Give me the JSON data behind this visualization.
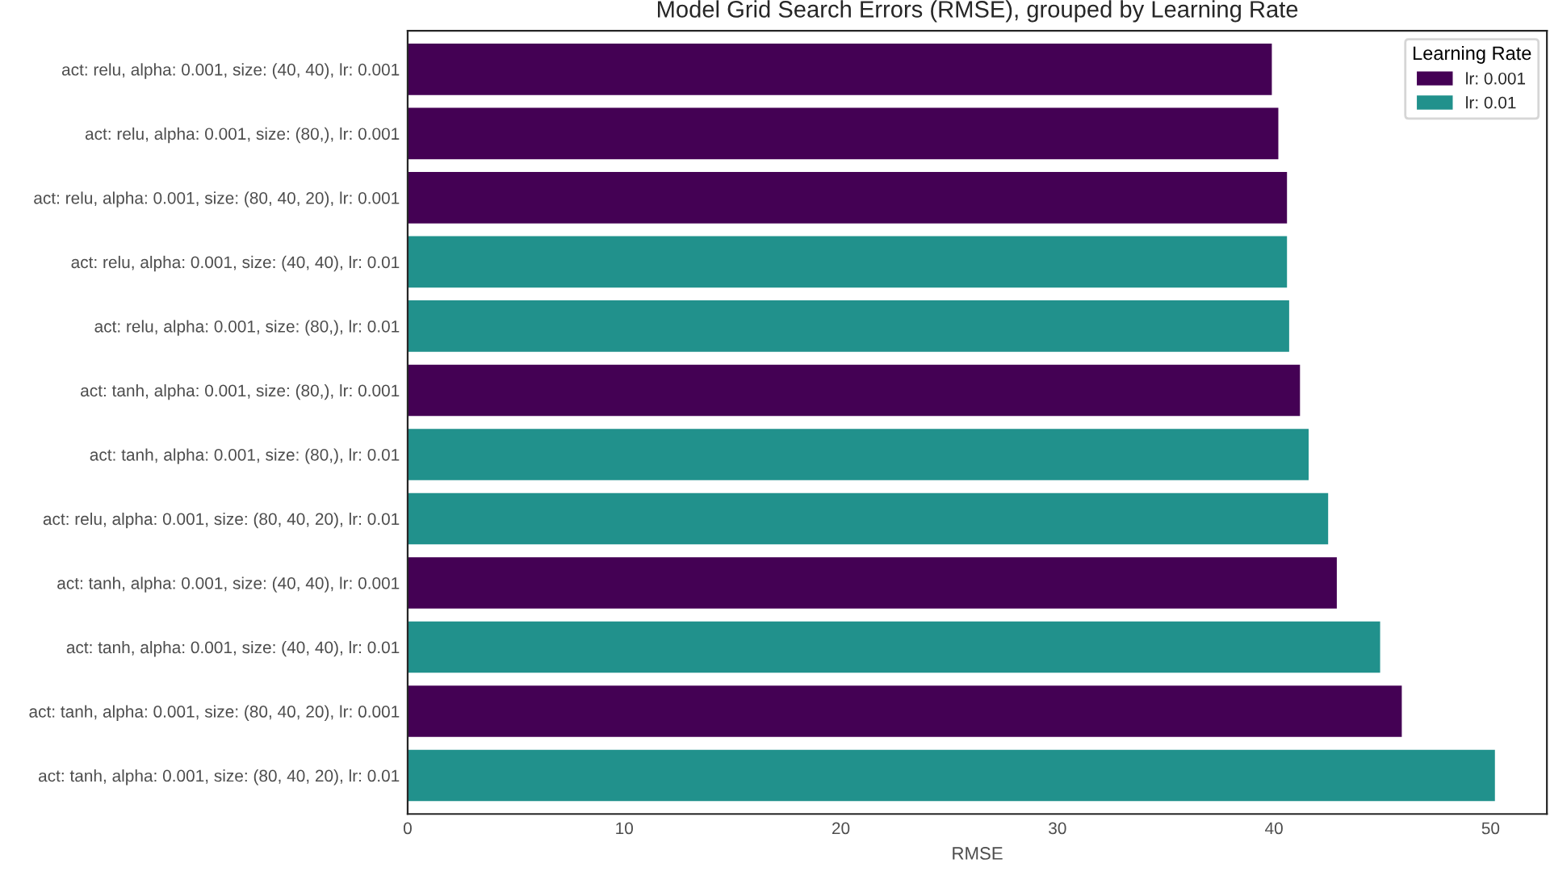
{
  "chart_data": {
    "type": "bar",
    "orientation": "horizontal",
    "title": "Model Grid Search Errors (RMSE), grouped by Learning Rate",
    "xlabel": "RMSE",
    "legend_title": "Learning Rate",
    "legend": "top right",
    "grid": false,
    "categories": [
      "act: relu, alpha: 0.001, size: (40, 40), lr: 0.001",
      "act: relu, alpha: 0.001, size: (80,), lr: 0.001",
      "act: relu, alpha: 0.001, size: (80, 40, 20), lr: 0.001",
      "act: relu, alpha: 0.001, size: (40, 40), lr: 0.01",
      "act: relu, alpha: 0.001, size: (80,), lr: 0.01",
      "act: tanh, alpha: 0.001, size: (80,), lr: 0.001",
      "act: tanh, alpha: 0.001, size: (80,), lr: 0.01",
      "act: relu, alpha: 0.001, size: (80, 40, 20), lr: 0.01",
      "act: tanh, alpha: 0.001, size: (40, 40), lr: 0.001",
      "act: tanh, alpha: 0.001, size: (40, 40), lr: 0.01",
      "act: tanh, alpha: 0.001, size: (80, 40, 20), lr: 0.001",
      "act: tanh, alpha: 0.001, size: (80, 40, 20), lr: 0.01"
    ],
    "series": [
      {
        "name": "lr: 0.001",
        "color": "#440154",
        "values": [
          39.9,
          40.2,
          40.6,
          null,
          null,
          41.2,
          null,
          null,
          42.9,
          null,
          45.9,
          null
        ]
      },
      {
        "name": "lr: 0.01",
        "color": "#21918c",
        "values": [
          null,
          null,
          null,
          40.6,
          40.7,
          null,
          41.6,
          42.5,
          null,
          44.9,
          null,
          50.2
        ]
      }
    ],
    "xlim": [
      0,
      52.6
    ],
    "xticks": [
      0,
      10,
      20,
      30,
      40,
      50
    ]
  }
}
